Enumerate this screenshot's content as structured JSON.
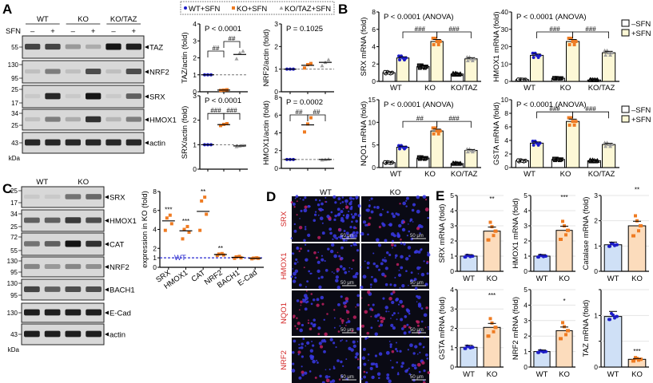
{
  "panels": {
    "A": {
      "label": "A",
      "blot": {
        "groups": [
          "WT",
          "KO",
          "KO/TAZ"
        ],
        "treatment_label": "SFN",
        "treatment_marks": [
          "–",
          "+",
          "–",
          "+",
          "–",
          "+"
        ],
        "rows": [
          {
            "name": "TAZ",
            "markers": [
              "55"
            ],
            "band_intensity": [
              0.75,
              0.75,
              0.3,
              0.2,
              1.0,
              0.95
            ]
          },
          {
            "name": "NRF2",
            "markers": [
              "130",
              "95"
            ],
            "band_intensity": [
              0.1,
              0.45,
              0.1,
              0.7,
              0.1,
              0.7
            ]
          },
          {
            "name": "SRX",
            "markers": [
              "25",
              "17"
            ],
            "band_intensity": [
              0.05,
              0.9,
              0.05,
              1.0,
              0.05,
              0.6
            ]
          },
          {
            "name": "HMOX1",
            "markers": [
              "34",
              "25"
            ],
            "band_intensity": [
              0.1,
              0.45,
              0.2,
              0.85,
              0.15,
              0.45
            ]
          },
          {
            "name": "actin",
            "markers": [
              "43"
            ],
            "band_intensity": [
              0.9,
              0.9,
              0.9,
              0.9,
              0.9,
              0.9
            ]
          }
        ],
        "unit": "kDa"
      },
      "legend": [
        "WT+SFN",
        "KO+SFN",
        "KO/TAZ+SFN"
      ]
    },
    "B": {
      "label": "B",
      "legend": [
        "–SFN",
        "+SFN"
      ]
    },
    "C": {
      "label": "C",
      "blot": {
        "groups": [
          "WT",
          "KO"
        ],
        "rows": [
          {
            "name": "SRX",
            "markers": [
              "25",
              "17"
            ],
            "band_intensity": [
              0.05,
              0.05,
              0.5,
              0.55
            ]
          },
          {
            "name": "HMOX1",
            "markers": [
              "34",
              "25"
            ],
            "band_intensity": [
              0.6,
              0.6,
              0.8,
              0.7
            ]
          },
          {
            "name": "CAT",
            "markers": [
              "72",
              "55"
            ],
            "band_intensity": [
              0.5,
              0.6,
              1.0,
              0.85
            ]
          },
          {
            "name": "NRF2",
            "markers": [
              "130",
              "95"
            ],
            "band_intensity": [
              0.4,
              0.3,
              0.4,
              0.35
            ]
          },
          {
            "name": "BACH1",
            "markers": [
              "130",
              "95"
            ],
            "band_intensity": [
              0.75,
              0.6,
              0.7,
              0.7
            ]
          },
          {
            "name": "E-Cad",
            "markers": [
              "130"
            ],
            "band_intensity": [
              0.95,
              0.95,
              0.95,
              0.95
            ]
          },
          {
            "name": "actin",
            "markers": [
              "43"
            ],
            "band_intensity": [
              0.95,
              0.95,
              0.95,
              0.95
            ]
          }
        ],
        "unit": "kDa"
      },
      "wt_line_label": "WT"
    },
    "D": {
      "label": "D",
      "columns": [
        "WT",
        "KO"
      ],
      "rows": [
        "SRX",
        "HMOX1",
        "NQO1",
        "NRF2"
      ],
      "scale_bar": "50 μm"
    },
    "E": {
      "label": "E"
    }
  },
  "colors": {
    "wt": "#1c1cc8",
    "ko": "#ef7b22",
    "kotaz": "#a0a0a0",
    "plus_sfn_bar": "#fdf8d6",
    "wt_bar": "#cfe0f6",
    "ko_bar": "#fcdcbc",
    "wt_line": "#2a2ad0",
    "stain_label": "#d42a2a"
  },
  "chart_data": [
    {
      "id": "A_TAZ",
      "type": "scatter",
      "ylabel": "TAZ/actin (fold)",
      "ylim": [
        0,
        4
      ],
      "ticks": [
        "0",
        "1",
        "2",
        "3",
        "4"
      ],
      "annotation": "P < 0.0001",
      "categories": [
        "WT+SFN",
        "KO+SFN",
        "KO/TAZ+SFN"
      ],
      "means": [
        1.0,
        0.1,
        2.2
      ],
      "points": [
        [
          1,
          1,
          1
        ],
        [
          0.08,
          0.1,
          0.12
        ],
        [
          1.95,
          2.3,
          2.4
        ]
      ],
      "sig": [
        "##",
        "##"
      ],
      "reference_line": 1
    },
    {
      "id": "A_NRF2",
      "type": "scatter",
      "ylabel": "NRF2/actin (fold)",
      "ylim": [
        0,
        3
      ],
      "ticks": [
        "0",
        "1",
        "2",
        "3"
      ],
      "annotation": "P = 0.1025",
      "categories": [
        "WT+SFN",
        "KO+SFN",
        "KO/TAZ+SFN"
      ],
      "means": [
        1.0,
        1.17,
        1.3
      ],
      "points": [
        [
          1,
          1,
          1
        ],
        [
          1.05,
          1.2,
          1.25
        ],
        [
          1.15,
          1.3,
          1.42
        ]
      ],
      "sig": [],
      "reference_line": 1
    },
    {
      "id": "A_SRX",
      "type": "scatter",
      "ylabel": "SRX/actin (fold)",
      "ylim": [
        0,
        3
      ],
      "ticks": [
        "0",
        "1",
        "2",
        "3"
      ],
      "annotation": "P < 0.0001",
      "categories": [
        "WT+SFN",
        "KO+SFN",
        "KO/TAZ+SFN"
      ],
      "means": [
        1.0,
        1.82,
        0.95
      ],
      "points": [
        [
          1,
          1,
          1
        ],
        [
          1.78,
          1.83,
          1.86
        ],
        [
          0.92,
          0.95,
          0.97
        ]
      ],
      "sig": [
        "###",
        "###"
      ],
      "reference_line": 1
    },
    {
      "id": "A_HMOX1",
      "type": "scatter",
      "ylabel": "HMOX1/actin (fold)",
      "ylim": [
        0,
        8
      ],
      "ticks": [
        "0",
        "2",
        "4",
        "6",
        "8"
      ],
      "annotation": "P = 0.0002",
      "categories": [
        "WT+SFN",
        "KO+SFN",
        "KO/TAZ+SFN"
      ],
      "means": [
        1.0,
        4.9,
        1.0
      ],
      "points": [
        [
          1,
          1,
          1
        ],
        [
          4.1,
          5.0,
          5.7
        ],
        [
          0.95,
          1.0,
          1.05
        ]
      ],
      "sig": [
        "##",
        "##"
      ],
      "reference_line": 1
    },
    {
      "id": "B_SRX",
      "type": "bar",
      "ylabel": "SRX mRNA (fold)",
      "ylim": [
        0,
        8
      ],
      "ticks": [
        "0",
        "2",
        "4",
        "6",
        "8"
      ],
      "annotation": "P < 0.0001 (ANOVA)",
      "categories": [
        "WT",
        "KO",
        "KO/TAZ"
      ],
      "series": [
        {
          "name": "–SFN",
          "values": [
            1.0,
            1.7,
            0.85
          ]
        },
        {
          "name": "+SFN",
          "values": [
            2.7,
            4.6,
            2.6
          ]
        }
      ],
      "sig": [
        "###",
        "###"
      ]
    },
    {
      "id": "B_HMOX1",
      "type": "bar",
      "ylabel": "HMOX1 mRNA (fold)",
      "ylim": [
        0,
        40
      ],
      "ticks": [
        "0",
        "10",
        "20",
        "30",
        "40"
      ],
      "annotation": "P < 0.0001 (ANOVA)",
      "categories": [
        "WT",
        "KO",
        "KO/TAZ"
      ],
      "series": [
        {
          "name": "–SFN",
          "values": [
            1.0,
            1.8,
            0.8
          ]
        },
        {
          "name": "+SFN",
          "values": [
            15.0,
            23.0,
            16.5
          ]
        }
      ],
      "sig": [
        "###",
        "###"
      ]
    },
    {
      "id": "B_NQO1",
      "type": "bar",
      "ylabel": "NQO1 mRNA (fold)",
      "ylim": [
        0,
        15
      ],
      "ticks": [
        "0",
        "5",
        "10",
        "15"
      ],
      "annotation": "P < 0.0001 (ANOVA)",
      "categories": [
        "WT",
        "KO",
        "KO/TAZ"
      ],
      "series": [
        {
          "name": "–SFN",
          "values": [
            1.1,
            2.1,
            0.9
          ]
        },
        {
          "name": "+SFN",
          "values": [
            4.5,
            8.1,
            3.8
          ]
        }
      ],
      "sig": [
        "##",
        "###"
      ]
    },
    {
      "id": "B_GSTA",
      "type": "bar",
      "ylabel": "GSTA mRNA (fold)",
      "ylim": [
        0,
        10
      ],
      "ticks": [
        "0",
        "2",
        "4",
        "6",
        "8",
        "10"
      ],
      "annotation": "P < 0.0001 (ANOVA)",
      "categories": [
        "WT",
        "KO",
        "KO/TAZ"
      ],
      "series": [
        {
          "name": "–SFN",
          "values": [
            1.0,
            1.2,
            1.0
          ]
        },
        {
          "name": "+SFN",
          "values": [
            3.6,
            6.8,
            3.4
          ]
        }
      ],
      "sig": [
        "###",
        "###"
      ]
    },
    {
      "id": "C_expr",
      "type": "scatter",
      "ylabel": "expression in KO (fold)",
      "ylim": [
        0,
        8
      ],
      "ticks": [
        "0",
        "1",
        "2",
        "4",
        "6",
        "8"
      ],
      "categories": [
        "SRX",
        "HMOX1",
        "CAT",
        "NRF2",
        "BACH1",
        "E-Cad"
      ],
      "means": [
        4.9,
        3.85,
        5.9,
        1.35,
        1.05,
        0.95
      ],
      "points": [
        [
          3.9,
          4.6,
          5.2,
          5.5
        ],
        [
          3.0,
          3.7,
          4.0,
          4.3
        ],
        [
          3.9,
          5.6,
          7.0,
          7.4
        ],
        [
          1.25,
          1.3,
          1.4,
          1.45
        ],
        [
          0.95,
          1.0,
          1.1,
          1.15
        ],
        [
          0.9,
          0.95,
          0.97,
          1.0
        ]
      ],
      "stars": [
        "***",
        "***",
        "**",
        "**",
        "",
        ""
      ],
      "reference_line": 1
    },
    {
      "id": "E_SRX",
      "type": "bar",
      "ylabel": "SRX mRNA (fold)",
      "ylim": [
        0,
        5
      ],
      "ticks": [
        "0",
        "1",
        "2",
        "3",
        "4",
        "5"
      ],
      "categories": [
        "WT",
        "KO"
      ],
      "values": [
        1.0,
        2.65
      ],
      "stars": [
        "",
        "**"
      ]
    },
    {
      "id": "E_HMOX1",
      "type": "bar",
      "ylabel": "HMOX1 mRNA (fold)",
      "ylim": [
        0,
        5
      ],
      "ticks": [
        "0",
        "1",
        "2",
        "3",
        "4",
        "5"
      ],
      "categories": [
        "WT",
        "KO"
      ],
      "values": [
        1.0,
        2.7
      ],
      "stars": [
        "",
        "***"
      ]
    },
    {
      "id": "E_CAT",
      "type": "bar",
      "ylabel": "Catalase mRNA (fold)",
      "ylim": [
        0,
        3
      ],
      "ticks": [
        "0",
        "1",
        "2",
        "3"
      ],
      "categories": [
        "WT",
        "KO"
      ],
      "values": [
        1.05,
        1.8
      ],
      "stars": [
        "",
        "**"
      ]
    },
    {
      "id": "E_GSTA",
      "type": "bar",
      "ylabel": "GSTA mRNA (fold)",
      "ylim": [
        0,
        4
      ],
      "ticks": [
        "0",
        "1",
        "2",
        "3",
        "4"
      ],
      "categories": [
        "WT",
        "KO"
      ],
      "values": [
        1.02,
        2.05
      ],
      "stars": [
        "",
        "***"
      ]
    },
    {
      "id": "E_NRF2",
      "type": "bar",
      "ylabel": "NRF2 mRNA (fold)",
      "ylim": [
        0,
        5
      ],
      "ticks": [
        "0",
        "1",
        "2",
        "3",
        "4",
        "5"
      ],
      "categories": [
        "WT",
        "KO"
      ],
      "values": [
        1.0,
        2.35
      ],
      "stars": [
        "",
        "*"
      ]
    },
    {
      "id": "E_TAZ",
      "type": "bar",
      "ylabel": "TAZ mRNA (fold)",
      "ylim": [
        0,
        1.5
      ],
      "ticks": [
        "0",
        "",
        "1",
        ""
      ],
      "categories": [
        "WT",
        "KO"
      ],
      "values": [
        0.98,
        0.15
      ],
      "stars": [
        "",
        "***"
      ]
    }
  ]
}
